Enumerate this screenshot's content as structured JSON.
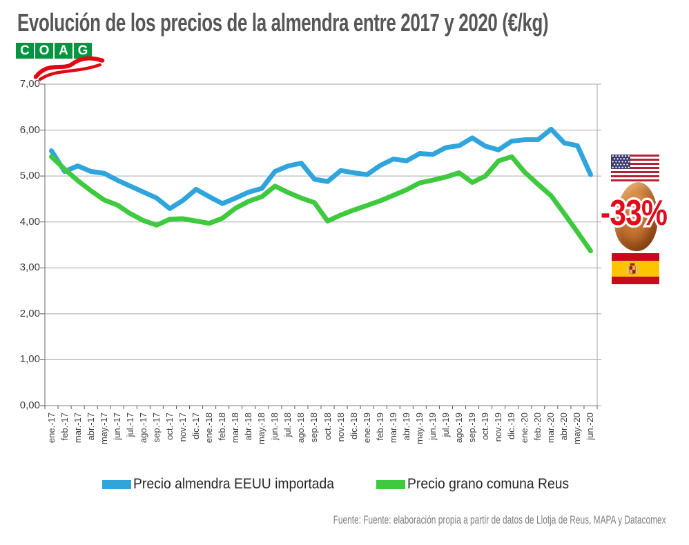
{
  "title": "Evolución de los precios de la almendra entre 2017 y 2020 (€/kg)",
  "logo": {
    "letters": [
      "C",
      "O",
      "A",
      "G"
    ]
  },
  "chart_data": {
    "type": "line",
    "title": "Evolución de los precios de la almendra entre 2017 y 2020 (€/kg)",
    "categories": [
      "ene.-17",
      "feb.-17",
      "mar.-17",
      "abr.-17",
      "may.-17",
      "jun.-17",
      "jul.-17",
      "ago.-17",
      "sep.-17",
      "oct.-17",
      "nov.-17",
      "dic.-17",
      "ene.-18",
      "feb.-18",
      "mar.-18",
      "abr.-18",
      "may.-18",
      "jun.-18",
      "jul.-18",
      "ago.-18",
      "sep.-18",
      "oct.-18",
      "nov.-18",
      "dic.-18",
      "ene.-19",
      "feb.-19",
      "mar.-19",
      "abr.-19",
      "may.-19",
      "jun.-19",
      "jul.-19",
      "ago.-19",
      "sep.-19",
      "oct.-19",
      "nov.-19",
      "dic.-19",
      "ene.-20",
      "feb.-20",
      "mar.-20",
      "abr.-20",
      "may.-20",
      "jun.-20"
    ],
    "series": [
      {
        "name": "Precio almendra EEUU importada",
        "color": "#2FA5DC",
        "values": [
          5.55,
          5.1,
          5.22,
          5.1,
          5.06,
          4.91,
          4.78,
          4.65,
          4.52,
          4.29,
          4.47,
          4.71,
          4.55,
          4.4,
          4.52,
          4.65,
          4.73,
          5.1,
          5.22,
          5.28,
          4.93,
          4.88,
          5.12,
          5.07,
          5.03,
          5.23,
          5.37,
          5.33,
          5.49,
          5.47,
          5.62,
          5.66,
          5.83,
          5.65,
          5.57,
          5.76,
          5.79,
          5.79,
          6.02,
          5.72,
          5.66,
          5.03
        ]
      },
      {
        "name": "Precio grano comuna Reus",
        "color": "#3FC93F",
        "values": [
          5.42,
          5.15,
          4.9,
          4.68,
          4.48,
          4.37,
          4.18,
          4.03,
          3.93,
          4.06,
          4.07,
          4.02,
          3.97,
          4.08,
          4.3,
          4.45,
          4.55,
          4.78,
          4.64,
          4.52,
          4.42,
          4.02,
          4.15,
          4.26,
          4.36,
          4.46,
          4.58,
          4.7,
          4.85,
          4.91,
          4.98,
          5.07,
          4.86,
          5.0,
          5.33,
          5.42,
          5.08,
          4.82,
          4.57,
          4.18,
          3.78,
          3.37
        ]
      }
    ],
    "xlabel": "",
    "ylabel": "",
    "ylim": [
      0,
      7
    ],
    "ytick_labels": [
      "0,00",
      "1,00",
      "2,00",
      "3,00",
      "4,00",
      "5,00",
      "6,00",
      "7,00"
    ],
    "grid": true,
    "legend_position": "bottom",
    "colors": {
      "grid": "#A6A6A6",
      "axis": "#808080",
      "tick": "#595959",
      "label": "#3f3f3f"
    }
  },
  "annotations": {
    "percent_change": "-33%",
    "percent_change_color": "#DF0C1C",
    "us_flag": "us-flag",
    "spain_flag": "spain-flag",
    "almond": "almond-kernel"
  },
  "source": "Fuente: Fuente: elaboración propia a partir de datos de Llotja de Reus, MAPA y Datacomex"
}
